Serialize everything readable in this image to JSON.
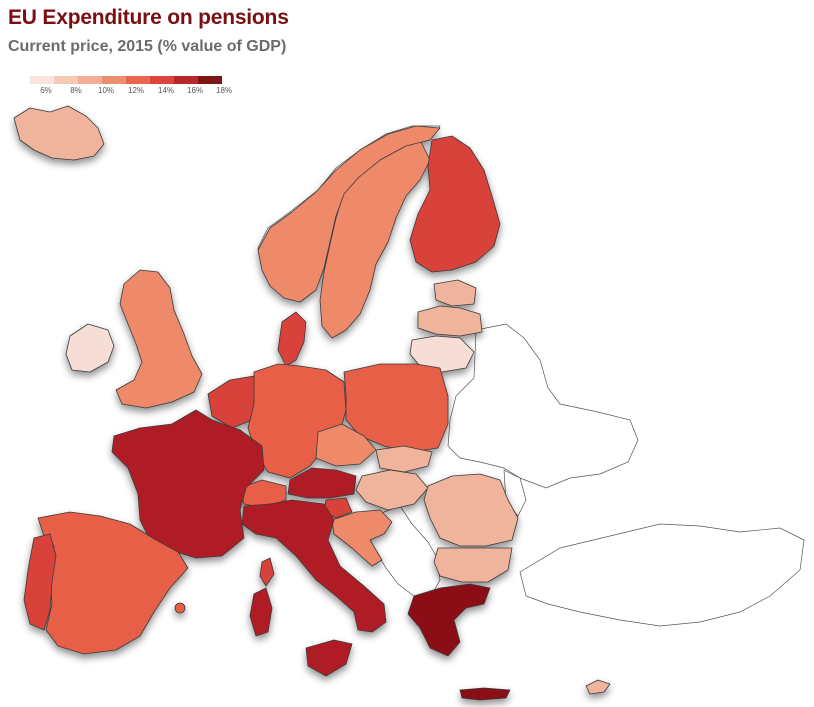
{
  "title": "EU Expenditure on pensions",
  "subtitle": "Current price, 2015 (% value of GDP)",
  "legend": {
    "colors": [
      "#fbe4dc",
      "#f6c9b7",
      "#f2ad93",
      "#ee8d6f",
      "#e8684e",
      "#d9463a",
      "#b42a2c",
      "#7e1517"
    ],
    "ticks": [
      "6%",
      "8%",
      "10%",
      "12%",
      "14%",
      "16%",
      "18%"
    ]
  },
  "map_colors": {
    "very_low": "#f6ddd5",
    "low": "#f0b49d",
    "mid": "#ee8a6a",
    "mid_high": "#e85f47",
    "high": "#d9423a",
    "very_high": "#b01f27",
    "highest": "#8b1016",
    "nodata": "#ffffff"
  }
}
